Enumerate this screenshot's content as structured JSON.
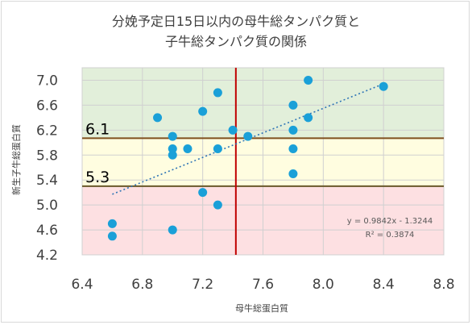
{
  "chart_data": {
    "type": "scatter",
    "title_lines": [
      "分娩予定日15日以内の母牛総タンパク質と",
      "子牛総タンパク質の関係"
    ],
    "xlabel": "母牛総蛋白質",
    "ylabel": "新生子牛総蛋白質",
    "xlim": [
      6.4,
      8.8
    ],
    "ylim": [
      4.2,
      7.2
    ],
    "x_ticks": [
      "6.4",
      "6.8",
      "7.2",
      "7.6",
      "8.0",
      "8.4",
      "8.8"
    ],
    "y_ticks": [
      "4.2",
      "4.6",
      "5.0",
      "5.4",
      "5.8",
      "6.2",
      "6.6",
      "7.0"
    ],
    "x_tick_values": [
      6.4,
      6.8,
      7.2,
      7.6,
      8.0,
      8.4,
      8.8
    ],
    "y_tick_values": [
      4.2,
      4.6,
      5.0,
      5.4,
      5.8,
      6.2,
      6.6,
      7.0
    ],
    "grid": true,
    "points": [
      {
        "x": 6.6,
        "y": 4.7
      },
      {
        "x": 6.6,
        "y": 4.5
      },
      {
        "x": 6.9,
        "y": 6.4
      },
      {
        "x": 7.0,
        "y": 6.1
      },
      {
        "x": 7.0,
        "y": 5.9
      },
      {
        "x": 7.0,
        "y": 5.8
      },
      {
        "x": 7.0,
        "y": 4.6
      },
      {
        "x": 7.1,
        "y": 5.9
      },
      {
        "x": 7.2,
        "y": 6.5
      },
      {
        "x": 7.2,
        "y": 5.2
      },
      {
        "x": 7.3,
        "y": 6.8
      },
      {
        "x": 7.3,
        "y": 5.9
      },
      {
        "x": 7.3,
        "y": 5.0
      },
      {
        "x": 7.4,
        "y": 6.2
      },
      {
        "x": 7.5,
        "y": 6.1
      },
      {
        "x": 7.8,
        "y": 6.6
      },
      {
        "x": 7.8,
        "y": 6.2
      },
      {
        "x": 7.8,
        "y": 5.9
      },
      {
        "x": 7.8,
        "y": 5.5
      },
      {
        "x": 7.9,
        "y": 7.0
      },
      {
        "x": 7.9,
        "y": 6.4
      },
      {
        "x": 8.4,
        "y": 6.9
      }
    ],
    "trendline": {
      "slope": 0.9842,
      "intercept": -1.3244,
      "x_start": 6.6,
      "x_end": 8.4
    },
    "equation_text": "y = 0.9842x - 1.3244",
    "r2_text": "R² = 0.3874",
    "bands": [
      {
        "from": 6.07,
        "to": 7.2,
        "color": "#e2efda"
      },
      {
        "from": 5.3,
        "to": 6.07,
        "color": "#fffde0"
      },
      {
        "from": 4.2,
        "to": 5.3,
        "color": "#fde0e2"
      }
    ],
    "hlines": [
      {
        "y": 6.07,
        "label": "6.1",
        "color": "#7f4f1f"
      },
      {
        "y": 5.3,
        "label": "5.3",
        "color": "#6a5a2a"
      }
    ],
    "vline": {
      "x": 7.42,
      "color": "#c00000"
    },
    "colors": {
      "point": "#1aa0d8",
      "trend": "#2f75b6",
      "grid": "#d0d0d0"
    }
  }
}
